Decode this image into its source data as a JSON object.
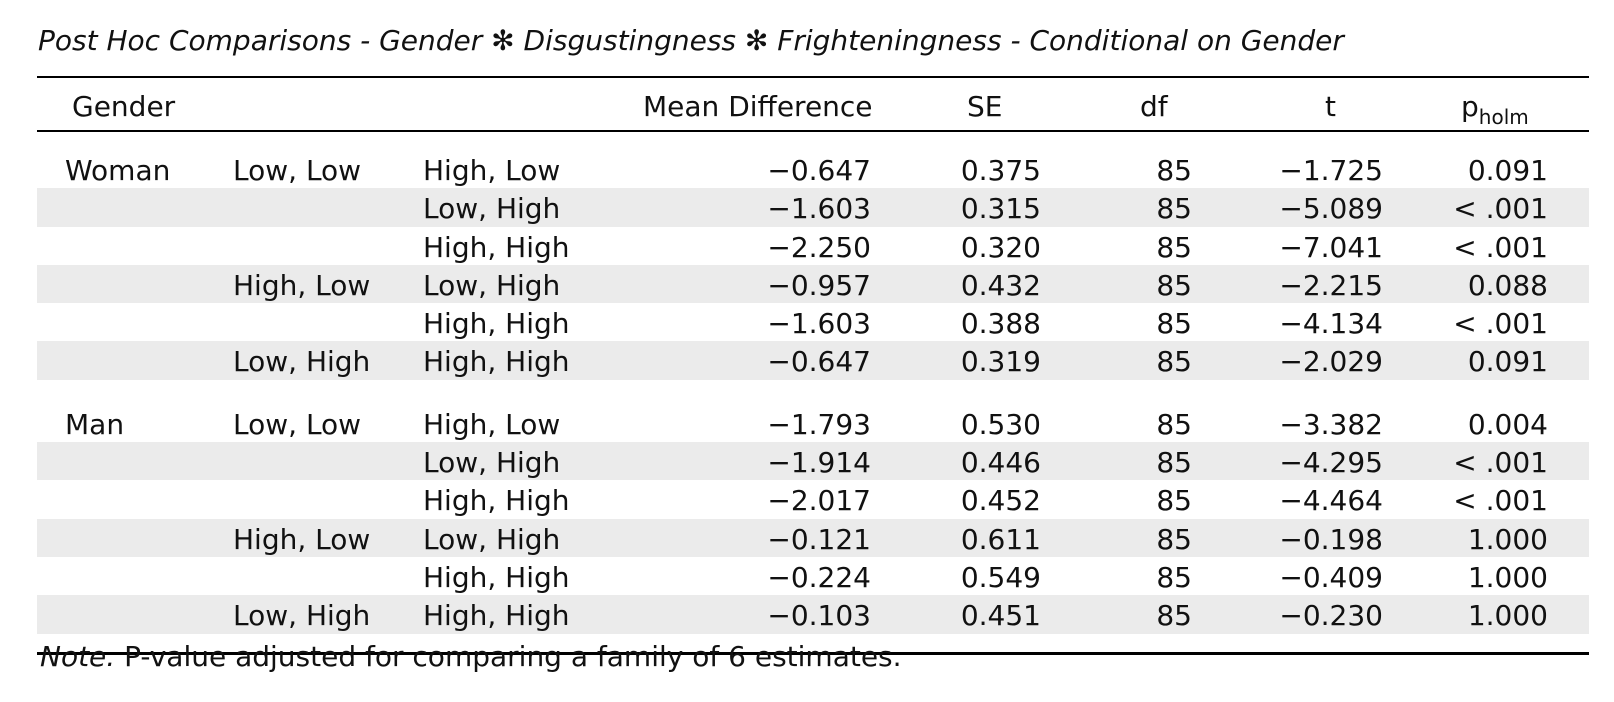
{
  "title": "Post Hoc Comparisons - Gender ✻ Disgustingness ✻ Frighteningness - Conditional on Gender",
  "headers": {
    "gender": "Gender",
    "mean_difference": "Mean Difference",
    "se": "SE",
    "df": "df",
    "t": "t",
    "p_main": "p",
    "p_sub": "holm"
  },
  "rows": [
    {
      "gender": "Woman",
      "level1": "Low, Low",
      "level2": "High, Low",
      "md": "−0.647",
      "se": "0.375",
      "df": "85",
      "t": "−1.725",
      "p": "0.091"
    },
    {
      "gender": "",
      "level1": "",
      "level2": "Low, High",
      "md": "−1.603",
      "se": "0.315",
      "df": "85",
      "t": "−5.089",
      "p": "< .001"
    },
    {
      "gender": "",
      "level1": "",
      "level2": "High, High",
      "md": "−2.250",
      "se": "0.320",
      "df": "85",
      "t": "−7.041",
      "p": "< .001"
    },
    {
      "gender": "",
      "level1": "High, Low",
      "level2": "Low, High",
      "md": "−0.957",
      "se": "0.432",
      "df": "85",
      "t": "−2.215",
      "p": "0.088"
    },
    {
      "gender": "",
      "level1": "",
      "level2": "High, High",
      "md": "−1.603",
      "se": "0.388",
      "df": "85",
      "t": "−4.134",
      "p": "< .001"
    },
    {
      "gender": "",
      "level1": "Low, High",
      "level2": "High, High",
      "md": "−0.647",
      "se": "0.319",
      "df": "85",
      "t": "−2.029",
      "p": "0.091"
    },
    {
      "gender": "Man",
      "level1": "Low, Low",
      "level2": "High, Low",
      "md": "−1.793",
      "se": "0.530",
      "df": "85",
      "t": "−3.382",
      "p": "0.004"
    },
    {
      "gender": "",
      "level1": "",
      "level2": "Low, High",
      "md": "−1.914",
      "se": "0.446",
      "df": "85",
      "t": "−4.295",
      "p": "< .001"
    },
    {
      "gender": "",
      "level1": "",
      "level2": "High, High",
      "md": "−2.017",
      "se": "0.452",
      "df": "85",
      "t": "−4.464",
      "p": "< .001"
    },
    {
      "gender": "",
      "level1": "High, Low",
      "level2": "Low, High",
      "md": "−0.121",
      "se": "0.611",
      "df": "85",
      "t": "−0.198",
      "p": "1.000"
    },
    {
      "gender": "",
      "level1": "",
      "level2": "High, High",
      "md": "−0.224",
      "se": "0.549",
      "df": "85",
      "t": "−0.409",
      "p": "1.000"
    },
    {
      "gender": "",
      "level1": "Low, High",
      "level2": "High, High",
      "md": "−0.103",
      "se": "0.451",
      "df": "85",
      "t": "−0.230",
      "p": "1.000"
    }
  ],
  "note": {
    "label": "Note.",
    "text": " P-value adjusted for comparing a family of 6 estimates."
  }
}
